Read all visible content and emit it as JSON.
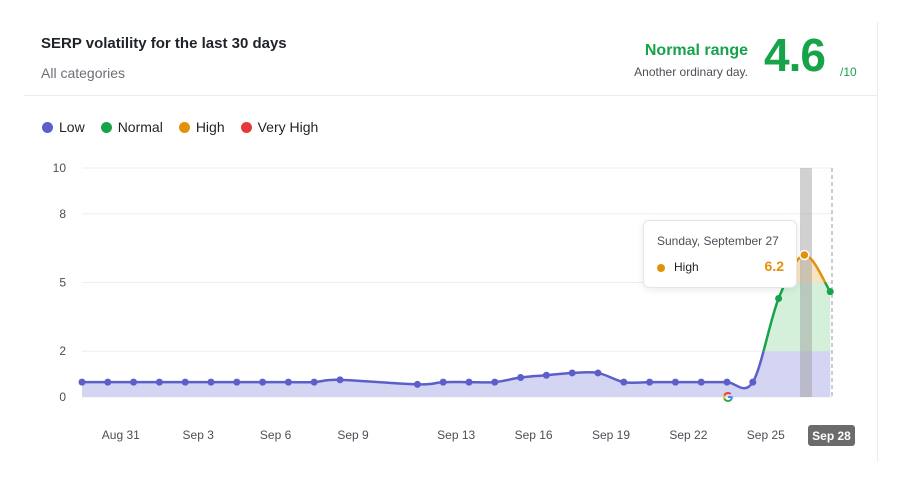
{
  "header": {
    "title": "SERP volatility for the last 30 days",
    "subtitle": "All categories",
    "range_label": "Normal range",
    "range_note": "Another ordinary day.",
    "score": "4.6",
    "score_max": "/10"
  },
  "legend": [
    {
      "label": "Low",
      "color": "#5b5fc7"
    },
    {
      "label": "Normal",
      "color": "#16a34a"
    },
    {
      "label": "High",
      "color": "#e3900a"
    },
    {
      "label": "Very High",
      "color": "#e5383b"
    }
  ],
  "tooltip": {
    "date": "Sunday, September 27",
    "category": "High",
    "value": "6.2"
  },
  "annotation_icon": "google-update-icon",
  "chart_data": {
    "type": "line",
    "title": "SERP volatility for the last 30 days",
    "xlabel": "",
    "ylabel": "",
    "ylim": [
      0,
      10
    ],
    "yticks": [
      0,
      2,
      5,
      8,
      10
    ],
    "xtick_labels": [
      "Aug 31",
      "Sep 3",
      "Sep 6",
      "Sep 9",
      "Sep 13",
      "Sep 16",
      "Sep 19",
      "Sep 22",
      "Sep 25",
      "Sep 28"
    ],
    "selected_x": "Sep 28",
    "bands": [
      {
        "name": "Low",
        "from": 0,
        "to": 2,
        "color": "#5b5fc7"
      },
      {
        "name": "Normal",
        "from": 2,
        "to": 5,
        "color": "#16a34a"
      },
      {
        "name": "High",
        "from": 5,
        "to": 8,
        "color": "#e3900a"
      },
      {
        "name": "Very High",
        "from": 8,
        "to": 10,
        "color": "#e5383b"
      }
    ],
    "series": [
      {
        "x": [
          "Aug 30",
          "Aug 31",
          "Sep 1",
          "Sep 2",
          "Sep 3",
          "Sep 4",
          "Sep 5",
          "Sep 6",
          "Sep 7",
          "Sep 8",
          "Sep 9",
          "Sep 12",
          "Sep 13",
          "Sep 14",
          "Sep 15",
          "Sep 16",
          "Sep 17",
          "Sep 18",
          "Sep 19",
          "Sep 20",
          "Sep 21",
          "Sep 22",
          "Sep 23",
          "Sep 24",
          "Sep 25",
          "Sep 26",
          "Sep 27",
          "Sep 28"
        ],
        "values": [
          0.65,
          0.65,
          0.65,
          0.65,
          0.65,
          0.65,
          0.65,
          0.65,
          0.65,
          0.65,
          0.75,
          0.55,
          0.65,
          0.65,
          0.65,
          0.85,
          0.95,
          1.05,
          1.05,
          0.65,
          0.65,
          0.65,
          0.65,
          0.65,
          0.65,
          4.3,
          6.2,
          4.6
        ]
      }
    ]
  }
}
